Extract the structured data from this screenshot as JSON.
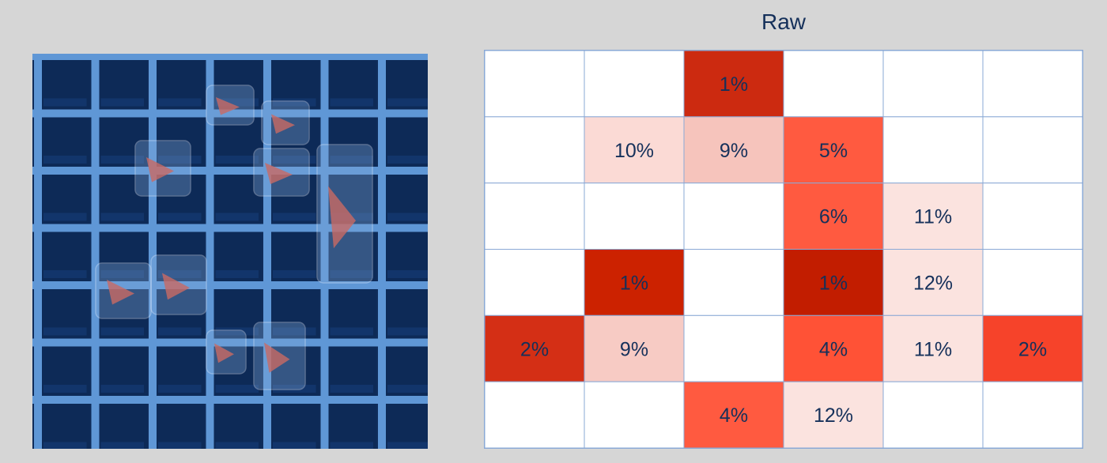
{
  "photo": {
    "description_icon": "ice-in-grid-photo"
  },
  "colors": {
    "background": "#d6d6d6",
    "grid_line": "#8aa9d6",
    "text": "#15305a",
    "photo_background": "#0f2c5a",
    "photo_grid": "#5f97d6",
    "low": "#ffffff",
    "high": "#cc2200"
  },
  "chart_data": {
    "type": "heatmap",
    "title": "Raw",
    "rows": 6,
    "cols": 6,
    "grid": true,
    "cells": [
      [
        null,
        null,
        "1%",
        null,
        null,
        null
      ],
      [
        null,
        "10%",
        "9%",
        "5%",
        null,
        null
      ],
      [
        null,
        null,
        null,
        "6%",
        "11%",
        null
      ],
      [
        null,
        "1%",
        null,
        "1%",
        "12%",
        null
      ],
      [
        "2%",
        "9%",
        null,
        "4%",
        "11%",
        "2%"
      ],
      [
        null,
        null,
        "4%",
        "12%",
        null,
        null
      ]
    ],
    "cell_colors": [
      [
        null,
        null,
        "#cc2a10",
        null,
        null,
        null
      ],
      [
        null,
        "#fbdad5",
        "#f6c4bc",
        "#ff5a40",
        null,
        null
      ],
      [
        null,
        null,
        null,
        "#ff5a40",
        "#fbe3df",
        null
      ],
      [
        null,
        "#cc2200",
        null,
        "#c21d00",
        "#fbe3df",
        null
      ],
      [
        "#d42f15",
        "#f7cbc4",
        null,
        "#ff5236",
        "#fbe3df",
        "#f6432a"
      ],
      [
        null,
        null,
        "#ff5a40",
        "#fbe3df",
        null,
        null
      ]
    ]
  }
}
